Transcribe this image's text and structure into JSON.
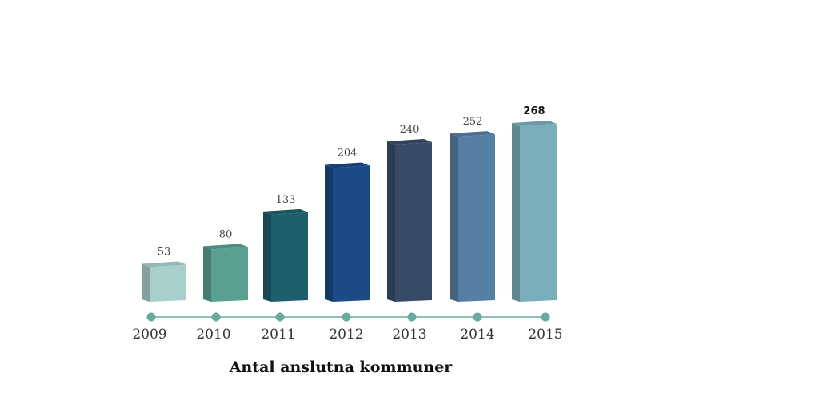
{
  "chart_data": {
    "type": "bar",
    "title": "Antal anslutna kommuner",
    "categories": [
      "2009",
      "2010",
      "2011",
      "2012",
      "2013",
      "2014",
      "2015"
    ],
    "values": [
      53,
      80,
      133,
      204,
      240,
      252,
      268
    ],
    "value_labels": [
      "53",
      "80",
      "133",
      "204",
      "240",
      "252",
      "268"
    ],
    "highlight_last": true,
    "ylim": [
      0,
      268
    ],
    "grid": false,
    "colors": [
      "#a9cfcc",
      "#5aa090",
      "#1d5f6b",
      "#1b4a87",
      "#374b66",
      "#567fa6",
      "#7aaebb"
    ],
    "timeline_color": "#6aaa9e"
  }
}
